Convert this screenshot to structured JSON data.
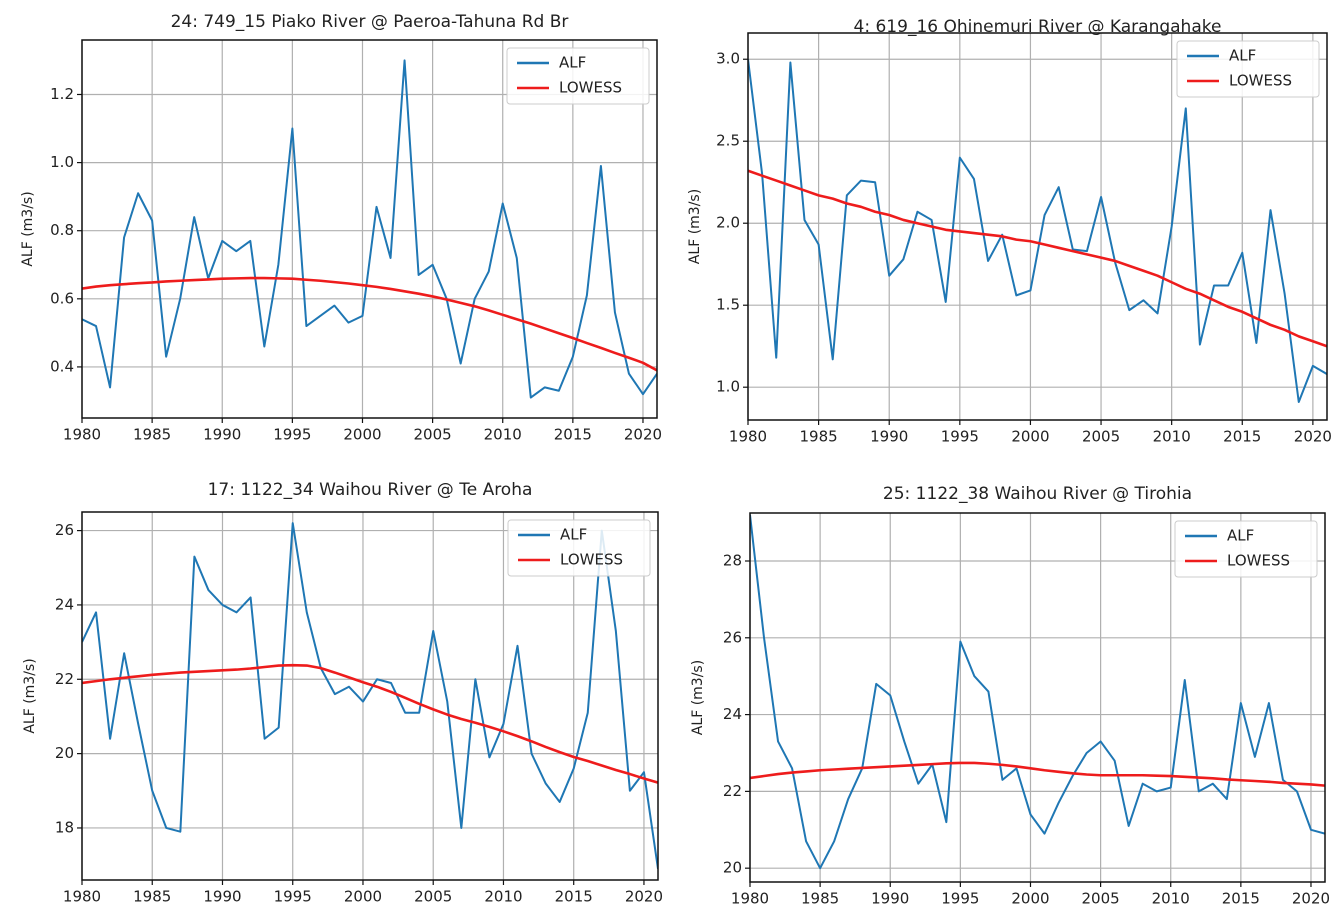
{
  "chart_data": [
    {
      "type": "line",
      "title": "24: 749_15 Piako River @ Paeroa-Tahuna Rd Br",
      "y_label": "ALF (m3/s)",
      "x": [
        1980,
        1981,
        1982,
        1983,
        1984,
        1985,
        1986,
        1987,
        1988,
        1989,
        1990,
        1991,
        1992,
        1993,
        1994,
        1995,
        1996,
        1997,
        1998,
        1999,
        2000,
        2001,
        2002,
        2003,
        2004,
        2005,
        2006,
        2007,
        2008,
        2009,
        2010,
        2011,
        2012,
        2013,
        2014,
        2015,
        2016,
        2017,
        2018,
        2019,
        2020,
        2021
      ],
      "series": [
        {
          "name": "ALF",
          "color": "#1f77b4",
          "values": [
            0.54,
            0.52,
            0.34,
            0.78,
            0.91,
            0.83,
            0.43,
            0.6,
            0.84,
            0.66,
            0.77,
            0.74,
            0.77,
            0.46,
            0.7,
            1.1,
            0.52,
            0.55,
            0.58,
            0.53,
            0.55,
            0.87,
            0.72,
            1.3,
            0.67,
            0.7,
            0.6,
            0.41,
            0.6,
            0.68,
            0.88,
            0.72,
            0.31,
            0.34,
            0.33,
            0.43,
            0.61,
            0.99,
            0.56,
            0.38,
            0.32,
            0.38
          ]
        },
        {
          "name": "LOWESS",
          "color": "#ee1c1c",
          "values": [
            0.63,
            0.636,
            0.64,
            0.643,
            0.646,
            0.648,
            0.651,
            0.653,
            0.655,
            0.657,
            0.659,
            0.66,
            0.661,
            0.661,
            0.66,
            0.659,
            0.656,
            0.653,
            0.649,
            0.645,
            0.64,
            0.635,
            0.629,
            0.622,
            0.615,
            0.607,
            0.598,
            0.588,
            0.578,
            0.566,
            0.553,
            0.54,
            0.527,
            0.513,
            0.499,
            0.485,
            0.47,
            0.456,
            0.441,
            0.427,
            0.412,
            0.39
          ]
        }
      ],
      "xlim": [
        1980,
        2021
      ],
      "xticks": [
        1980,
        1985,
        1990,
        1995,
        2000,
        2005,
        2010,
        2015,
        2020
      ],
      "ylim": [
        0.25,
        1.36
      ],
      "yticks": [
        0.4,
        0.6,
        0.8,
        {
          "value": 1,
          "label": "1.0"
        },
        1.2
      ],
      "grid": true,
      "legend": "upper right"
    },
    {
      "type": "line",
      "title": "4: 619_16 Ohinemuri River @ Karangahake",
      "y_label": "ALF (m3/s)",
      "x": [
        1980,
        1981,
        1982,
        1983,
        1984,
        1985,
        1986,
        1987,
        1988,
        1989,
        1990,
        1991,
        1992,
        1993,
        1994,
        1995,
        1996,
        1997,
        1998,
        1999,
        2000,
        2001,
        2002,
        2003,
        2004,
        2005,
        2006,
        2007,
        2008,
        2009,
        2010,
        2011,
        2012,
        2013,
        2014,
        2015,
        2016,
        2017,
        2018,
        2019,
        2020,
        2021
      ],
      "series": [
        {
          "name": "ALF",
          "color": "#1f77b4",
          "values": [
            3.0,
            2.3,
            1.18,
            2.98,
            2.02,
            1.87,
            1.17,
            2.17,
            2.26,
            2.25,
            1.68,
            1.78,
            2.07,
            2.02,
            1.52,
            2.4,
            2.27,
            1.77,
            1.93,
            1.56,
            1.59,
            2.05,
            2.22,
            1.84,
            1.83,
            2.16,
            1.76,
            1.47,
            1.53,
            1.45,
            1.98,
            2.7,
            1.26,
            1.62,
            1.62,
            1.82,
            1.27,
            2.08,
            1.57,
            0.91,
            1.13,
            1.08
          ]
        },
        {
          "name": "LOWESS",
          "color": "#ee1c1c",
          "values": [
            2.32,
            2.29,
            2.26,
            2.23,
            2.2,
            2.17,
            2.15,
            2.12,
            2.1,
            2.07,
            2.05,
            2.02,
            2.0,
            1.98,
            1.96,
            1.95,
            1.94,
            1.93,
            1.92,
            1.9,
            1.89,
            1.87,
            1.85,
            1.83,
            1.81,
            1.79,
            1.77,
            1.74,
            1.71,
            1.68,
            1.64,
            1.6,
            1.57,
            1.53,
            1.49,
            1.46,
            1.42,
            1.38,
            1.35,
            1.31,
            1.28,
            1.25
          ]
        }
      ],
      "xlim": [
        1980,
        2021
      ],
      "xticks": [
        1980,
        1985,
        1990,
        1995,
        2000,
        2005,
        2010,
        2015,
        2020
      ],
      "ylim": [
        0.8,
        3.16
      ],
      "yticks": [
        {
          "value": 1,
          "label": "1.0"
        },
        1.5,
        {
          "value": 2,
          "label": "2.0"
        },
        2.5,
        {
          "value": 3,
          "label": "3.0"
        }
      ],
      "grid": true,
      "legend": "upper right"
    },
    {
      "type": "line",
      "title": "17: 1122_34 Waihou River @ Te Aroha",
      "y_label": "ALF (m3/s)",
      "x": [
        1980,
        1981,
        1982,
        1983,
        1984,
        1985,
        1986,
        1987,
        1988,
        1989,
        1990,
        1991,
        1992,
        1993,
        1994,
        1995,
        1996,
        1997,
        1998,
        1999,
        2000,
        2001,
        2002,
        2003,
        2004,
        2005,
        2006,
        2007,
        2008,
        2009,
        2010,
        2011,
        2012,
        2013,
        2014,
        2015,
        2016,
        2017,
        2018,
        2019,
        2020,
        2021
      ],
      "series": [
        {
          "name": "ALF",
          "color": "#1f77b4",
          "values": [
            23.0,
            23.8,
            20.4,
            22.7,
            20.8,
            19.0,
            18.0,
            17.9,
            25.3,
            24.4,
            24.0,
            23.8,
            24.2,
            20.4,
            20.7,
            26.2,
            23.8,
            22.3,
            21.6,
            21.8,
            21.4,
            22.0,
            21.9,
            21.1,
            21.1,
            23.3,
            21.4,
            18.0,
            22.0,
            19.9,
            20.8,
            22.9,
            20.0,
            19.2,
            18.7,
            19.6,
            21.1,
            26.0,
            23.3,
            19.0,
            19.5,
            16.9
          ]
        },
        {
          "name": "LOWESS",
          "color": "#ee1c1c",
          "values": [
            21.9,
            21.95,
            22.0,
            22.04,
            22.08,
            22.12,
            22.15,
            22.18,
            22.2,
            22.22,
            22.24,
            22.26,
            22.29,
            22.33,
            22.37,
            22.38,
            22.37,
            22.3,
            22.18,
            22.05,
            21.92,
            21.8,
            21.66,
            21.5,
            21.34,
            21.19,
            21.05,
            20.93,
            20.83,
            20.72,
            20.6,
            20.47,
            20.33,
            20.18,
            20.04,
            19.91,
            19.8,
            19.68,
            19.56,
            19.45,
            19.33,
            19.22
          ]
        }
      ],
      "xlim": [
        1980,
        2021
      ],
      "xticks": [
        1980,
        1985,
        1990,
        1995,
        2000,
        2005,
        2010,
        2015,
        2020
      ],
      "ylim": [
        16.6,
        26.5
      ],
      "yticks": [
        18,
        20,
        22,
        24,
        26
      ],
      "grid": true,
      "legend": "upper right"
    },
    {
      "type": "line",
      "title": "25: 1122_38 Waihou River @ Tirohia",
      "y_label": "ALF (m3/s)",
      "x": [
        1980,
        1981,
        1982,
        1983,
        1984,
        1985,
        1986,
        1987,
        1988,
        1989,
        1990,
        1991,
        1992,
        1993,
        1994,
        1995,
        1996,
        1997,
        1998,
        1999,
        2000,
        2001,
        2002,
        2003,
        2004,
        2005,
        2006,
        2007,
        2008,
        2009,
        2010,
        2011,
        2012,
        2013,
        2014,
        2015,
        2016,
        2017,
        2018,
        2019,
        2020,
        2021
      ],
      "series": [
        {
          "name": "ALF",
          "color": "#1f77b4",
          "values": [
            29.2,
            26.0,
            23.3,
            22.6,
            20.7,
            20.0,
            20.7,
            21.8,
            22.6,
            24.8,
            24.5,
            23.3,
            22.2,
            22.7,
            21.2,
            25.9,
            25.0,
            24.6,
            22.3,
            22.6,
            21.4,
            20.9,
            21.7,
            22.4,
            23.0,
            23.3,
            22.8,
            21.1,
            22.2,
            22.0,
            22.1,
            24.9,
            22.0,
            22.2,
            21.8,
            24.3,
            22.9,
            24.3,
            22.3,
            22.0,
            21.0,
            20.9
          ]
        },
        {
          "name": "LOWESS",
          "color": "#ee1c1c",
          "values": [
            22.35,
            22.4,
            22.45,
            22.49,
            22.52,
            22.55,
            22.57,
            22.59,
            22.61,
            22.63,
            22.65,
            22.67,
            22.69,
            22.71,
            22.73,
            22.74,
            22.74,
            22.72,
            22.69,
            22.65,
            22.6,
            22.55,
            22.51,
            22.47,
            22.44,
            22.42,
            22.42,
            22.42,
            22.42,
            22.41,
            22.4,
            22.38,
            22.36,
            22.34,
            22.31,
            22.29,
            22.27,
            22.25,
            22.22,
            22.2,
            22.18,
            22.15
          ]
        }
      ],
      "xlim": [
        1980,
        2021
      ],
      "xticks": [
        1980,
        1985,
        1990,
        1995,
        2000,
        2005,
        2010,
        2015,
        2020
      ],
      "ylim": [
        19.64,
        29.25
      ],
      "yticks": [
        20,
        22,
        24,
        26,
        28
      ],
      "grid": true,
      "legend": "upper right"
    }
  ]
}
